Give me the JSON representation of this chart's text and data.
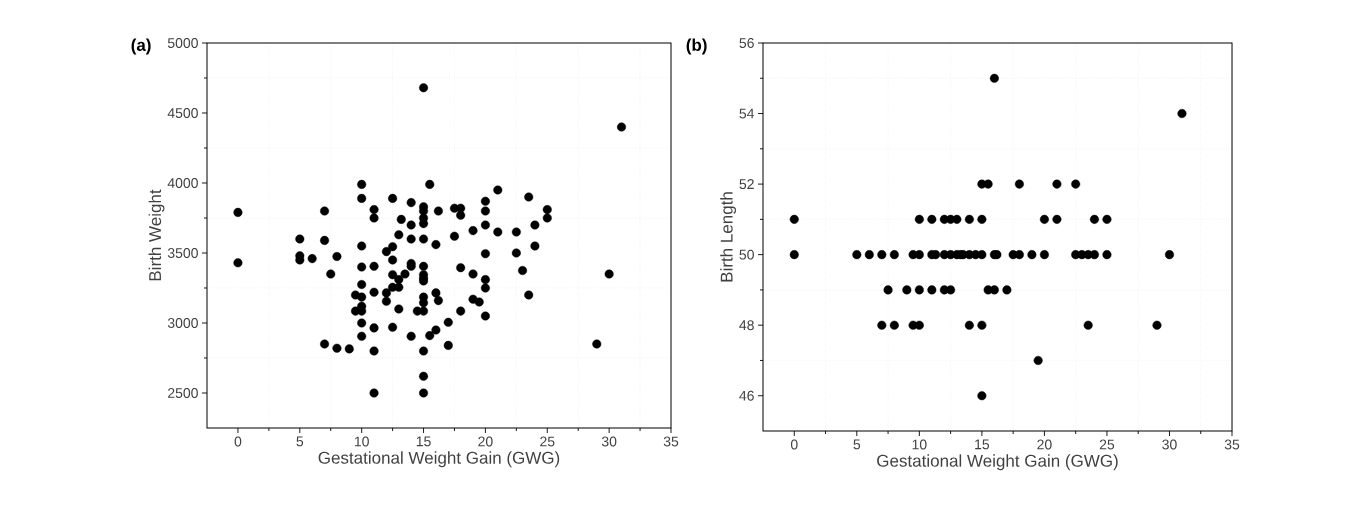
{
  "chart_data": [
    {
      "type": "scatter",
      "title": "(a)",
      "xlabel": "Gestational Weight Gain (GWG)",
      "ylabel": "Birth Weight",
      "xlim": [
        -2.5,
        35
      ],
      "ylim": [
        2250,
        5000
      ],
      "xticks": [
        0,
        5,
        10,
        15,
        20,
        25,
        30,
        35
      ],
      "yticks": [
        2500,
        3000,
        3500,
        4000,
        4500,
        5000
      ],
      "grid": true,
      "marker": "circle",
      "series": [
        {
          "color": "#000000",
          "x": [
            15,
            31,
            0,
            10,
            10,
            15.5,
            12.5,
            21,
            23.5,
            14,
            11,
            11,
            15,
            15,
            15,
            15,
            16.2,
            17.5,
            18,
            18,
            20,
            20,
            20,
            25,
            25,
            7,
            5,
            7,
            13.2,
            14,
            13,
            14,
            15,
            16,
            17.5,
            19,
            21,
            22.5,
            24,
            24,
            10,
            12.5,
            12,
            22.5,
            20,
            0,
            5,
            5,
            6,
            8,
            7.5,
            10,
            11,
            12.5,
            14,
            14,
            15,
            15,
            15,
            15,
            13.5,
            12.5,
            13,
            12.5,
            13,
            10,
            12,
            12,
            11,
            9.5,
            10,
            10,
            9.5,
            10,
            10,
            10,
            11,
            12.5,
            13,
            15,
            15,
            14.5,
            15,
            16,
            16.2,
            18,
            19,
            20,
            20,
            19,
            19.5,
            18,
            20,
            23,
            23.5,
            30,
            17,
            16,
            15.5,
            14,
            17,
            7,
            8,
            9,
            11,
            15,
            29,
            15,
            11,
            15
          ],
          "values": [
            4680,
            4400,
            3790,
            3990,
            3890,
            3990,
            3890,
            3950,
            3900,
            3860,
            3810,
            3750,
            3830,
            3800,
            3750,
            3710,
            3800,
            3820,
            3820,
            3770,
            3870,
            3800,
            3700,
            3810,
            3750,
            3800,
            3600,
            3590,
            3740,
            3700,
            3630,
            3600,
            3600,
            3560,
            3620,
            3660,
            3650,
            3650,
            3700,
            3550,
            3550,
            3545,
            3510,
            3500,
            3495,
            3430,
            3480,
            3450,
            3460,
            3475,
            3350,
            3400,
            3405,
            3450,
            3425,
            3405,
            3405,
            3345,
            3320,
            3300,
            3350,
            3345,
            3310,
            3255,
            3255,
            3275,
            3215,
            3155,
            3220,
            3200,
            3185,
            3120,
            3085,
            3085,
            3000,
            2905,
            2965,
            2970,
            3100,
            3185,
            3145,
            3085,
            3085,
            3215,
            3160,
            3395,
            3350,
            3310,
            3250,
            3170,
            3150,
            3085,
            3050,
            3375,
            3200,
            3350,
            3005,
            2950,
            2910,
            2905,
            2840,
            2850,
            2820,
            2815,
            2800,
            2800,
            2850,
            2620,
            2500,
            2500
          ]
        }
      ]
    },
    {
      "type": "scatter",
      "title": "(b)",
      "xlabel": "Gestational Weight Gain (GWG)",
      "ylabel": "Birth Length",
      "xlim": [
        -2.5,
        35
      ],
      "ylim": [
        45,
        56
      ],
      "xticks": [
        0,
        5,
        10,
        15,
        20,
        25,
        30,
        35
      ],
      "yticks": [
        46,
        48,
        50,
        52,
        54,
        56
      ],
      "grid": true,
      "marker": "circle",
      "series": [
        {
          "color": "#000000",
          "x": [
            0,
            0,
            16,
            31,
            15,
            15.5,
            18,
            21,
            22.5,
            10,
            11,
            12,
            12.5,
            13,
            14,
            15,
            20,
            21,
            24,
            25,
            5,
            6,
            7,
            8,
            9.5,
            10,
            11,
            11.3,
            12,
            12.5,
            13,
            13.3,
            13.5,
            14,
            14.5,
            15,
            16,
            16.2,
            17.5,
            18,
            19,
            20,
            22.5,
            23,
            23.5,
            24,
            25,
            30,
            7.5,
            9,
            10,
            11,
            12,
            12.5,
            15.5,
            16,
            17,
            7,
            8,
            9.5,
            10,
            14,
            15,
            23.5,
            29,
            19.5,
            15
          ],
          "values": [
            51,
            50,
            55,
            54,
            52,
            52,
            52,
            52,
            52,
            51,
            51,
            51,
            51,
            51,
            51,
            51,
            51,
            51,
            51,
            51,
            50,
            50,
            50,
            50,
            50,
            50,
            50,
            50,
            50,
            50,
            50,
            50,
            50,
            50,
            50,
            50,
            50,
            50,
            50,
            50,
            50,
            50,
            50,
            50,
            50,
            50,
            50,
            50,
            49,
            49,
            49,
            49,
            49,
            49,
            49,
            49,
            49,
            48,
            48,
            48,
            48,
            48,
            48,
            48,
            48,
            47,
            46
          ]
        }
      ]
    }
  ]
}
